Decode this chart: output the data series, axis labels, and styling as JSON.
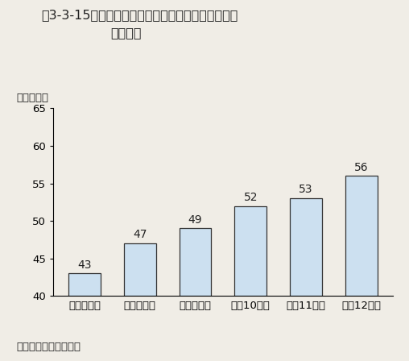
{
  "title_line1": "第3-3-15図　共同研究センターを設置している大学",
  "title_line2": "数の累計",
  "ylabel": "（大学数）",
  "footnote": "資料：文部科学省調べ",
  "categories": [
    "平成７年度",
    "平成８年度",
    "平成９年度",
    "平成10年度",
    "平成11年度",
    "平成12年度"
  ],
  "values": [
    43,
    47,
    49,
    52,
    53,
    56
  ],
  "bar_color": "#cce0f0",
  "bar_edge_color": "#333333",
  "ylim": [
    40,
    65
  ],
  "yticks": [
    40,
    45,
    50,
    55,
    60,
    65
  ],
  "background_color": "#f0ede6",
  "title_fontsize": 11.5,
  "tick_fontsize": 9.5,
  "label_fontsize": 9.5,
  "value_fontsize": 10,
  "footnote_fontsize": 9.5
}
